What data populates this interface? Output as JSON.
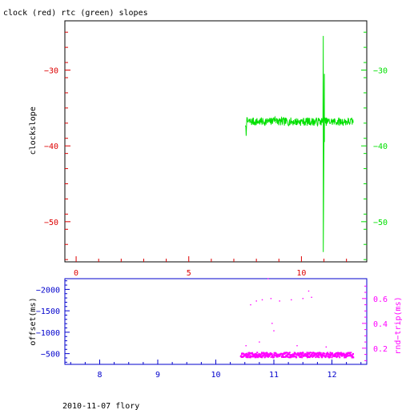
{
  "title": "clock (red) rtc (green) slopes",
  "footer": "2010-11-07 flory",
  "colors": {
    "red": "#dd0000",
    "green": "#00e000",
    "blue": "#0000cc",
    "magenta": "#ff00ff",
    "axis": "#000000"
  },
  "chart_data": [
    {
      "type": "line",
      "title": "clock (red) rtc (green) slopes",
      "xlabel": "",
      "ylabel": "clockslope",
      "xlim": [
        -0.5,
        12.9
      ],
      "ylim": [
        -55.3,
        -23.5
      ],
      "x_ticks": [
        0,
        5,
        10
      ],
      "x_tick_labels": [
        "0",
        "5",
        "10"
      ],
      "y_ticks_left": [
        -30,
        -40,
        -50
      ],
      "y_tick_labels_left": [
        "−30",
        "−40",
        "−50"
      ],
      "y_ticks_right": [
        -30,
        -40,
        -50
      ],
      "y_tick_labels_right": [
        "−30",
        "−40",
        "−50"
      ],
      "grid": false,
      "legend": "none (colors named in title)",
      "series": [
        {
          "name": "rtc",
          "color": "#00e000",
          "x_start": 7.5,
          "x_end": 12.3,
          "baseline": -36.8,
          "noise": 0.55,
          "spikes": [
            {
              "x": 10.97,
              "y_high": -25.5,
              "y_low": -54.0
            },
            {
              "x": 11.02,
              "y_high": -30.5,
              "y_low": -39.5
            }
          ]
        }
      ]
    },
    {
      "type": "scatter",
      "xlabel": "",
      "ylabel_left": "offset(ms)",
      "ylabel_right": "rnd−trip(ms)",
      "xlim": [
        7.4,
        12.6
      ],
      "ylim_left": [
        -250,
        -2250
      ],
      "ylim_right": [
        0.07,
        0.76
      ],
      "x_ticks": [
        8,
        9,
        10,
        11,
        12
      ],
      "x_tick_labels": [
        "8",
        "9",
        "10",
        "11",
        "12"
      ],
      "y_ticks_left": [
        -2000,
        -1500,
        -1000,
        -500
      ],
      "y_tick_labels_left": [
        "−2000",
        "−1500",
        "−1000",
        "−500"
      ],
      "y_ticks_right": [
        0.6,
        0.4,
        0.2
      ],
      "y_tick_labels_right": [
        "0.6",
        "0.4",
        "0.2"
      ],
      "grid": false,
      "series": [
        {
          "name": "rnd−trip",
          "color": "#ff00ff",
          "x_start": 10.43,
          "x_end": 12.37,
          "baseline": 0.145,
          "spread": 0.02,
          "outliers": [
            {
              "x": 10.9,
              "y": 0.76
            },
            {
              "x": 10.6,
              "y": 0.55
            },
            {
              "x": 10.7,
              "y": 0.58
            },
            {
              "x": 10.8,
              "y": 0.59
            },
            {
              "x": 10.95,
              "y": 0.6
            },
            {
              "x": 11.1,
              "y": 0.58
            },
            {
              "x": 11.3,
              "y": 0.59
            },
            {
              "x": 11.5,
              "y": 0.6
            },
            {
              "x": 11.6,
              "y": 0.66
            },
            {
              "x": 11.65,
              "y": 0.61
            },
            {
              "x": 11.0,
              "y": 0.34
            },
            {
              "x": 10.75,
              "y": 0.25
            },
            {
              "x": 10.97,
              "y": 0.4
            },
            {
              "x": 10.52,
              "y": 0.22
            },
            {
              "x": 11.4,
              "y": 0.22
            },
            {
              "x": 11.9,
              "y": 0.21
            }
          ]
        }
      ]
    }
  ]
}
